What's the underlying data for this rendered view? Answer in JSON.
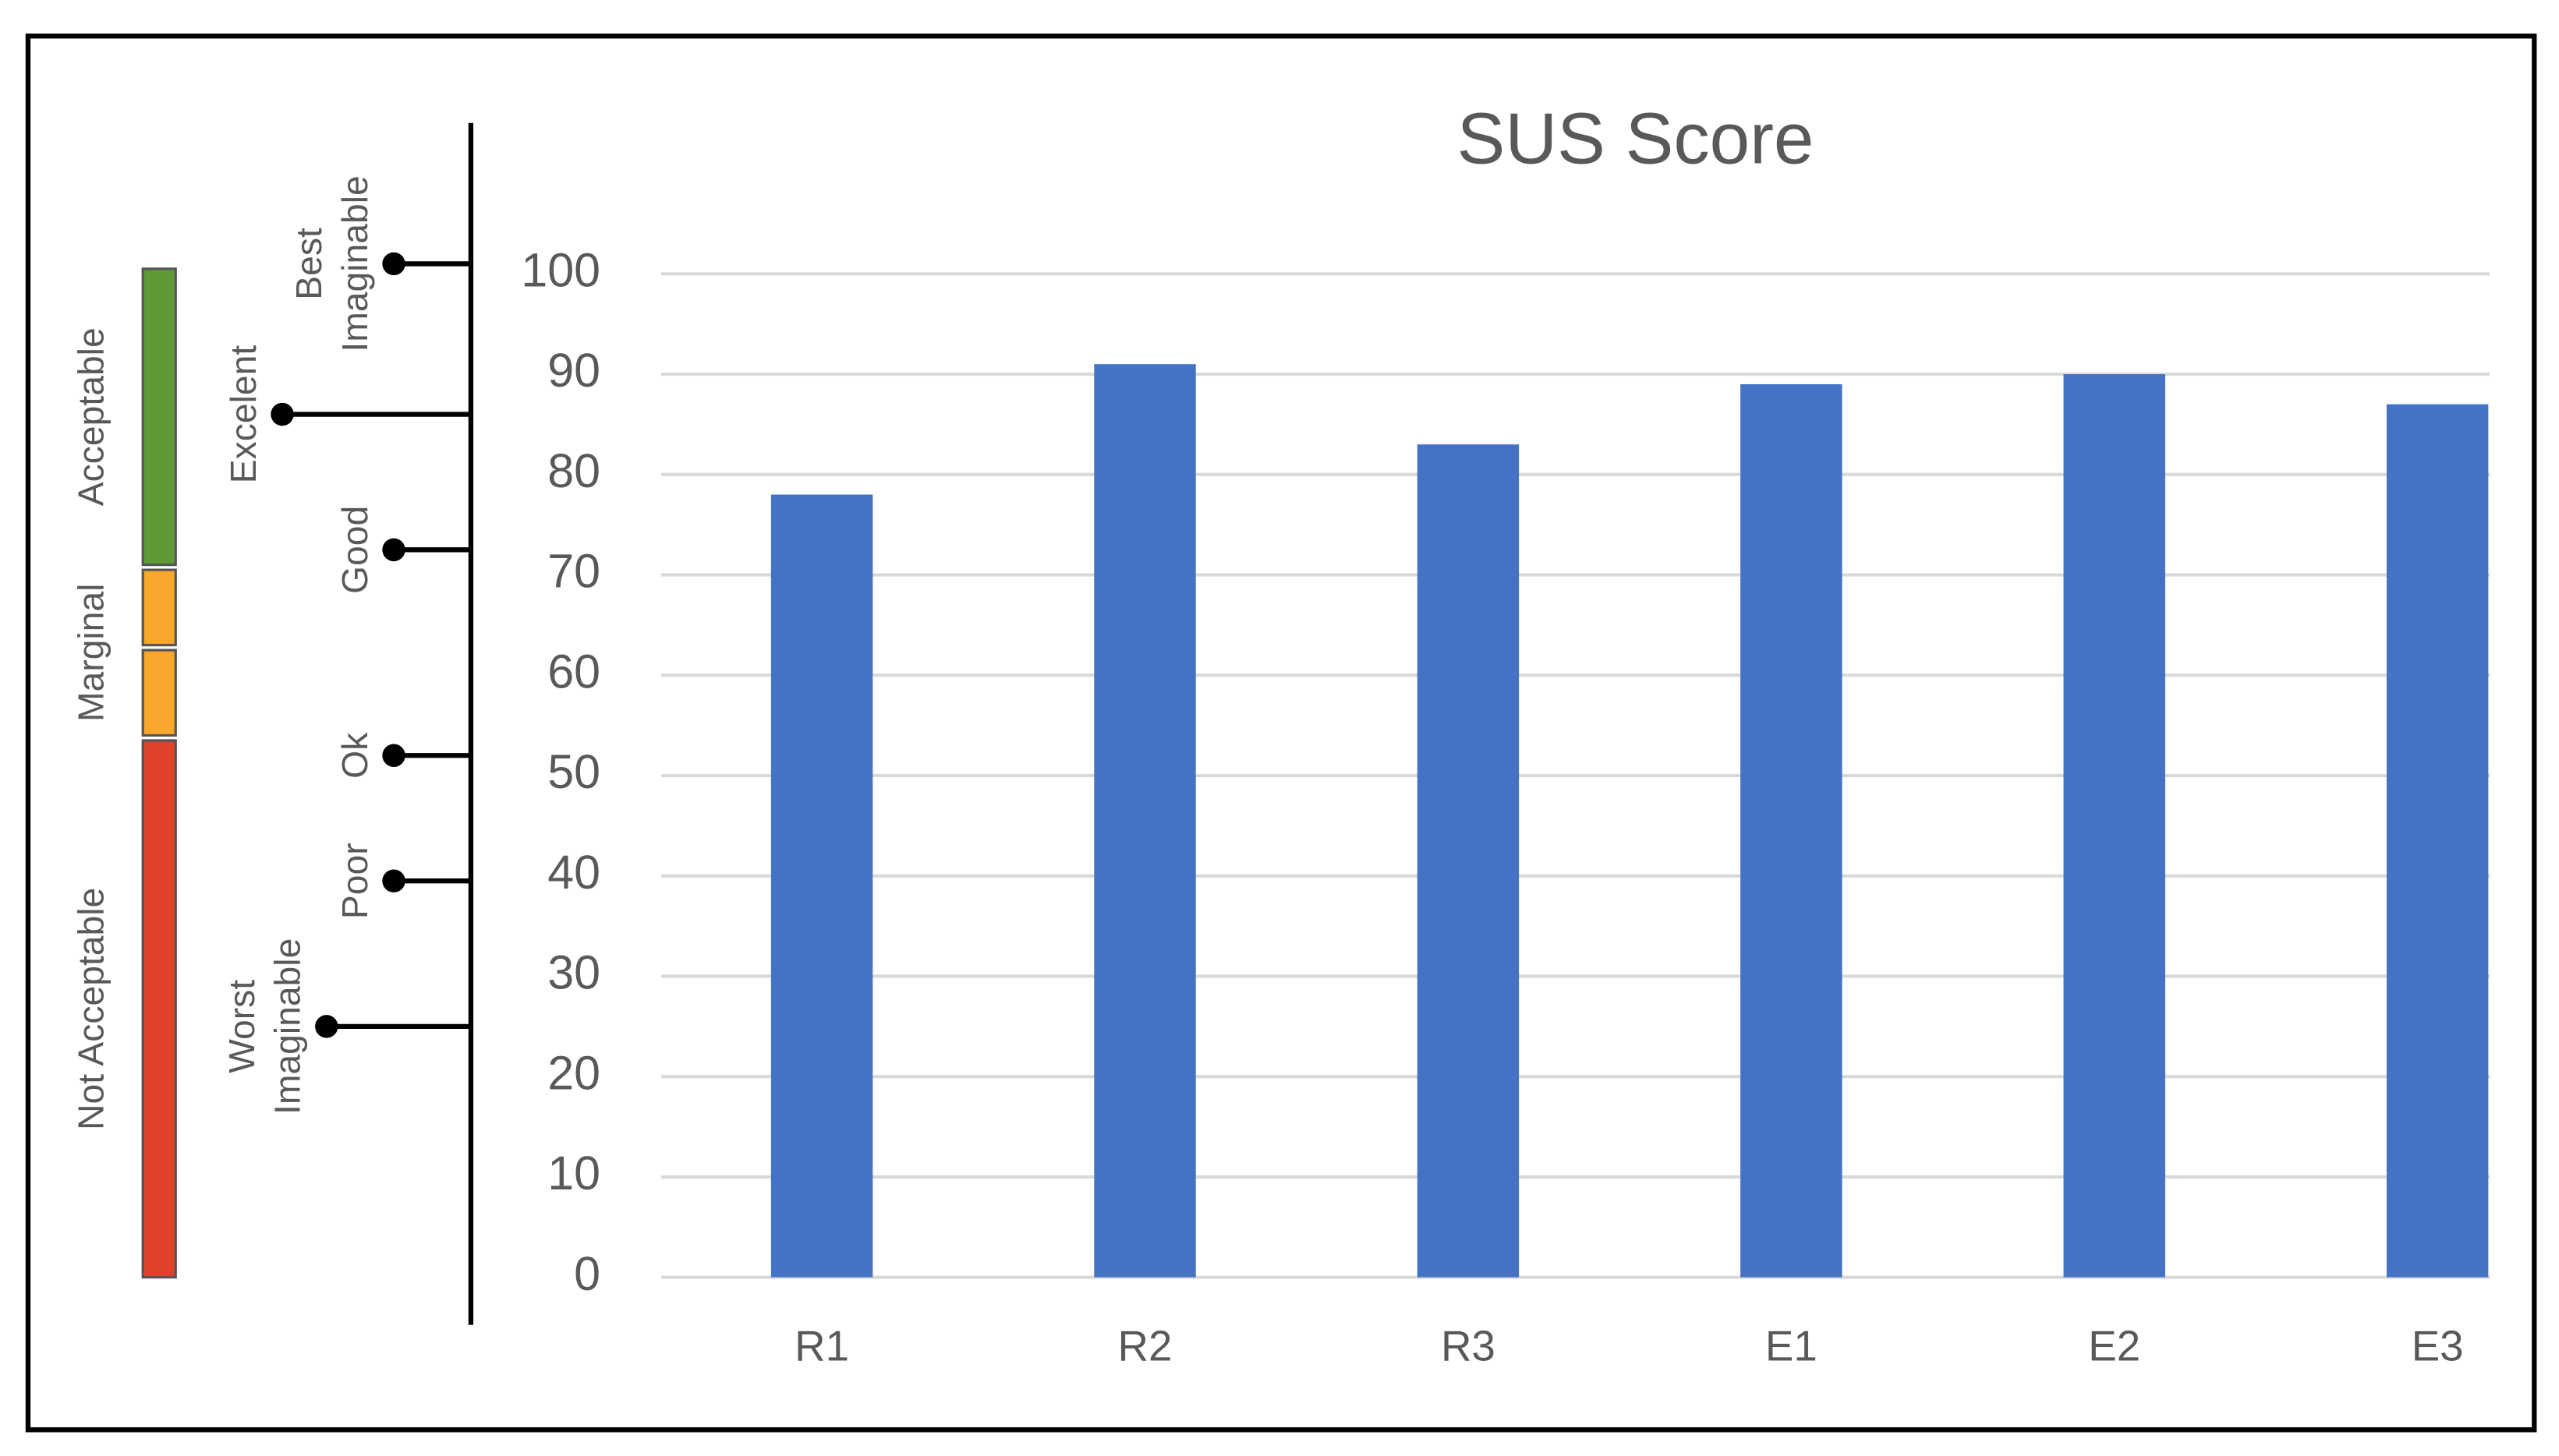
{
  "chart_data": {
    "type": "bar",
    "title": "SUS Score",
    "categories": [
      "R1",
      "R2",
      "R3",
      "E1",
      "E2",
      "E3"
    ],
    "values": [
      78,
      91,
      83,
      89,
      90,
      87
    ],
    "color": "#4472c4",
    "ylim": [
      0,
      100
    ],
    "yticks": [
      0,
      10,
      20,
      30,
      40,
      50,
      60,
      70,
      80,
      90,
      100
    ],
    "grid": true,
    "adjective_scale": [
      {
        "lines": [
          "Best",
          "Imaginable"
        ],
        "value": 101
      },
      {
        "lines": [
          "Excelent"
        ],
        "value": 86
      },
      {
        "lines": [
          "Good"
        ],
        "value": 72.5
      },
      {
        "lines": [
          "Ok"
        ],
        "value": 52
      },
      {
        "lines": [
          "Poor"
        ],
        "value": 39.5
      },
      {
        "lines": [
          "Worst",
          "Imaginable"
        ],
        "value": 25
      }
    ],
    "acceptability": [
      {
        "label": "Acceptable",
        "color": "#5e9a35",
        "ranges": [
          [
            71,
            100.5
          ]
        ]
      },
      {
        "label": "Marginal",
        "color": "#f7a72b",
        "ranges": [
          [
            63,
            70.5
          ],
          [
            54,
            62.5
          ]
        ]
      },
      {
        "label": "Not Acceptable",
        "color": "#e0412b",
        "ranges": [
          [
            0,
            53.5
          ]
        ]
      }
    ]
  }
}
